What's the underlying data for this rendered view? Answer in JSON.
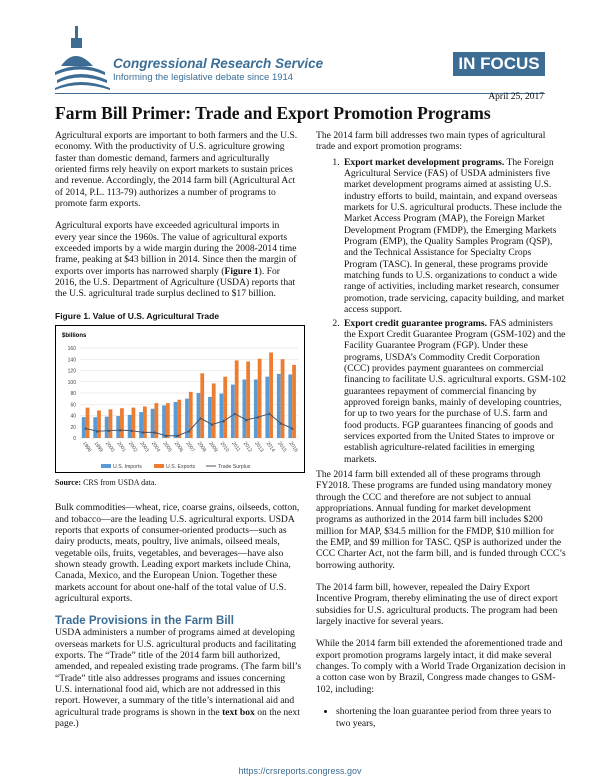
{
  "header": {
    "org": "Congressional Research Service",
    "tagline": "Informing the legislative debate since 1914",
    "badge": "IN FOCUS",
    "date": "April 25, 2017"
  },
  "title": "Farm Bill Primer: Trade and Export Promotion Programs",
  "left": {
    "p1": "Agricultural exports are important to both farmers and the U.S. economy. With the productivity of U.S. agriculture growing faster than domestic demand, farmers and agriculturally oriented firms rely heavily on export markets to sustain prices and revenue. Accordingly, the 2014 farm bill (Agricultural Act of 2014, P.L. 113-79) authorizes a number of programs to promote farm exports.",
    "p2a": "Agricultural exports have exceeded agricultural imports in every year since the 1960s. The value of agricultural exports exceeded imports by a wide margin during the 2008-2014 time frame, peaking at $43 billion in 2014. Since then the margin of exports over imports has narrowed sharply (",
    "p2b": "Figure 1",
    "p2c": "). For 2016, the U.S. Department of Agriculture (USDA) reports that the U.S. agricultural trade surplus declined to $17 billion.",
    "fig_title": "Figure 1. Value of U.S. Agricultural Trade",
    "source_label": "Source:",
    "source_text": " CRS from USDA data.",
    "p3": "Bulk commodities—wheat, rice, coarse grains, oilseeds, cotton, and tobacco—are the leading U.S. agricultural exports. USDA reports that exports of consumer-oriented products—such as dairy products, meats, poultry, live animals, oilseed meals, vegetable oils, fruits, vegetables, and beverages—have also shown steady growth. Leading export markets include China, Canada, Mexico, and the European Union. Together these markets account for about one-half of the total value of U.S. agricultural exports.",
    "h_trade": "Trade Provisions in the Farm Bill",
    "p4a": "USDA administers a number of programs aimed at developing overseas markets for U.S. agricultural products and facilitating exports. The “Trade” title of the 2014 farm bill authorized, amended, and repealed existing trade programs. (The farm bill’s “Trade” title also addresses programs and issues concerning U.S. international food aid, which are not addressed in this report. However, a summary of the title’s international aid and agricultural trade programs is shown in the ",
    "p4b": "text box",
    "p4c": " on the next page.)"
  },
  "right": {
    "intro": "The 2014 farm bill addresses two main types of agricultural trade and export promotion programs:",
    "items": [
      {
        "head": "Export market development programs.",
        "body": " The Foreign Agricultural Service (FAS) of USDA administers five market development programs aimed at assisting U.S. industry efforts to build, maintain, and expand overseas markets for U.S. agricultural products. These include the Market Access Program (MAP), the Foreign Market Development Program (FMDP), the Emerging Markets Program (EMP), the Quality Samples Program (QSP), and the Technical Assistance for Specialty Crops Program (TASC). In general, these programs provide matching funds to U.S. organizations to conduct a wide range of activities, including market research, consumer promotion, trade servicing, capacity building, and market access support."
      },
      {
        "head": "Export credit guarantee programs.",
        "body": " FAS administers the Export Credit Guarantee Program (GSM-102) and the Facility Guarantee Program (FGP). Under these programs, USDA’s Commodity Credit Corporation (CCC) provides payment guarantees on commercial financing to facilitate U.S. agricultural exports. GSM-102 guarantees repayment of commercial financing by approved foreign banks, mainly of developing countries, for up to two years for the purchase of U.S. farm and food products. FGP guarantees financing of goods and services exported from the United States to improve or establish agriculture-related facilities in emerging markets."
      }
    ],
    "p2": "The 2014 farm bill extended all of these programs through FY2018. These programs are funded using mandatory money through the CCC and therefore are not subject to annual appropriations. Annual funding for market development programs as authorized in the 2014 farm bill includes $200 million for MAP, $34.5 million for the FMDP, $10 million for the EMP, and $9 million for TASC. QSP is authorized under the CCC Charter Act, not the farm bill, and is funded through CCC’s borrowing authority.",
    "p3": "The 2014 farm bill, however, repealed the Dairy Export Incentive Program, thereby eliminating the use of direct export subsidies for U.S. agricultural products. The program had been largely inactive for several years.",
    "p4": "While the 2014 farm bill extended the aforementioned trade and export promotion programs largely intact, it did make several changes. To comply with a World Trade Organization decision in a cotton case won by Brazil, Congress made changes to GSM-102, including:",
    "bullet1": "shortening the loan guarantee period from three years to two years,"
  },
  "footer": "https://crsreports.congress.gov",
  "chart_data": {
    "type": "bar",
    "title": "Value of U.S. Agricultural Trade",
    "ylabel": "$billions",
    "ylim": [
      0,
      160
    ],
    "yticks": [
      0,
      20,
      40,
      60,
      80,
      100,
      120,
      140,
      160
    ],
    "categories": [
      "1998",
      "1999",
      "2000",
      "2001",
      "2002",
      "2003",
      "2004",
      "2005",
      "2006",
      "2007",
      "2008",
      "2009",
      "2010",
      "2011",
      "2012",
      "2013",
      "2014",
      "2015",
      "2016"
    ],
    "series": [
      {
        "name": "U.S. Imports",
        "kind": "bar",
        "color": "#5b9bd5",
        "values": [
          37,
          37,
          38,
          39,
          41,
          46,
          52,
          58,
          64,
          70,
          80,
          73,
          79,
          95,
          104,
          104,
          109,
          114,
          113
        ]
      },
      {
        "name": "U.S. Exports",
        "kind": "bar",
        "color": "#ed7d31",
        "values": [
          54,
          49,
          51,
          53,
          54,
          56,
          62,
          62,
          68,
          82,
          115,
          97,
          109,
          138,
          136,
          141,
          152,
          140,
          130
        ]
      },
      {
        "name": "Trade Surplus",
        "kind": "line",
        "color": "#44546a",
        "values": [
          17,
          12,
          13,
          14,
          13,
          10,
          10,
          4,
          4,
          12,
          35,
          24,
          30,
          43,
          32,
          37,
          43,
          26,
          17
        ]
      }
    ],
    "legend": "bottom"
  }
}
